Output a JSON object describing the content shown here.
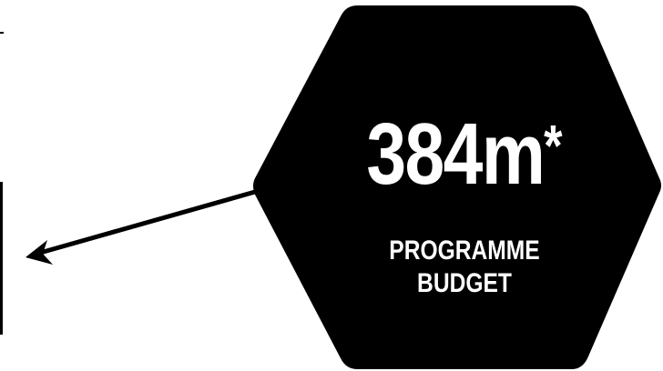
{
  "hexagon": {
    "figure": "384m",
    "footnote_marker": "*",
    "label_line1": "PROGRAMME",
    "label_line2": "BUDGET",
    "fill": "#000000",
    "text_color": "#ffffff"
  },
  "arrow": {
    "color": "#000000"
  },
  "left_frame": {
    "color": "#000000"
  }
}
